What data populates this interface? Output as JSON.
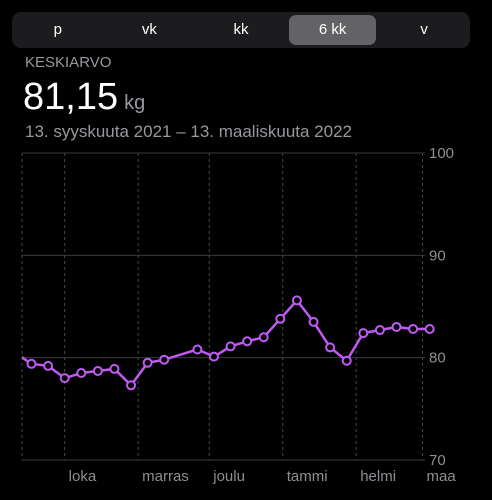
{
  "header": {
    "segments": [
      "p",
      "vk",
      "kk",
      "6 kk",
      "v"
    ],
    "selected": 3,
    "stat_label": "KESKIARVO",
    "stat_value": "81,15",
    "unit": "kg",
    "date_range": "13. syyskuuta 2021 – 13. maaliskuuta 2022"
  },
  "chart_data": {
    "type": "line",
    "x": [
      -3,
      4,
      11,
      18,
      25,
      32,
      39,
      46,
      53,
      60,
      74,
      81,
      88,
      95,
      102,
      109,
      116,
      123,
      130,
      137,
      144,
      151,
      158,
      165,
      172
    ],
    "series": [
      {
        "color": "#bf5af2",
        "values": [
          80.5,
          79.4,
          79.2,
          78.0,
          78.5,
          78.7,
          78.9,
          77.3,
          79.5,
          79.8,
          80.8,
          80.1,
          81.1,
          81.6,
          82.0,
          83.8,
          85.6,
          83.5,
          81.0,
          79.7,
          82.4,
          82.7,
          83.0,
          82.8,
          82.8
        ]
      }
    ],
    "xlim": [
      0,
      181
    ],
    "xticks": [
      {
        "value": 18,
        "label": "loka"
      },
      {
        "value": 49,
        "label": "marras"
      },
      {
        "value": 79,
        "label": "joulu"
      },
      {
        "value": 110,
        "label": "tammi"
      },
      {
        "value": 141,
        "label": "helmi"
      },
      {
        "value": 169,
        "label": "maa"
      }
    ],
    "ylim": [
      70,
      100
    ],
    "yticks": [
      70,
      80,
      90,
      100
    ],
    "grid": true
  }
}
